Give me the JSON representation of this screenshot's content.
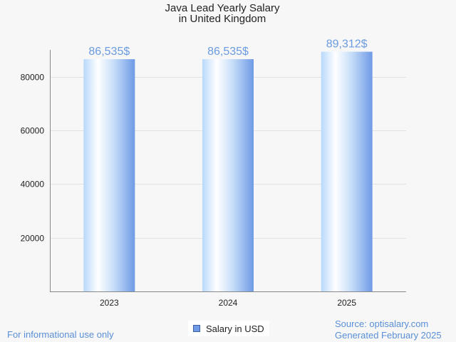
{
  "chart_data": {
    "type": "bar",
    "title": [
      "Java Lead Yearly Salary",
      "in United Kingdom"
    ],
    "categories": [
      "2023",
      "2024",
      "2025"
    ],
    "series": [
      {
        "name": "Salary in USD",
        "values": [
          86535,
          86535,
          89312
        ]
      }
    ],
    "data_labels": [
      "86,535$",
      "86,535$",
      "89,312$"
    ],
    "yticks": [
      20000,
      40000,
      60000,
      80000
    ],
    "ylim": [
      0,
      90000
    ],
    "grid": true,
    "legend_position": "bottom-center"
  },
  "footer": {
    "disclaimer": "For informational use only",
    "source": "Source: optisalary.com",
    "generated": "Generated February 2025"
  },
  "colors": {
    "bar_light": "#ffffff",
    "bar_mid": "#b8d9fb",
    "bar_dark": "#6f9ae6",
    "data_label": "#6a9be0",
    "axis": "#888888",
    "grid": "#e2e2e2"
  }
}
